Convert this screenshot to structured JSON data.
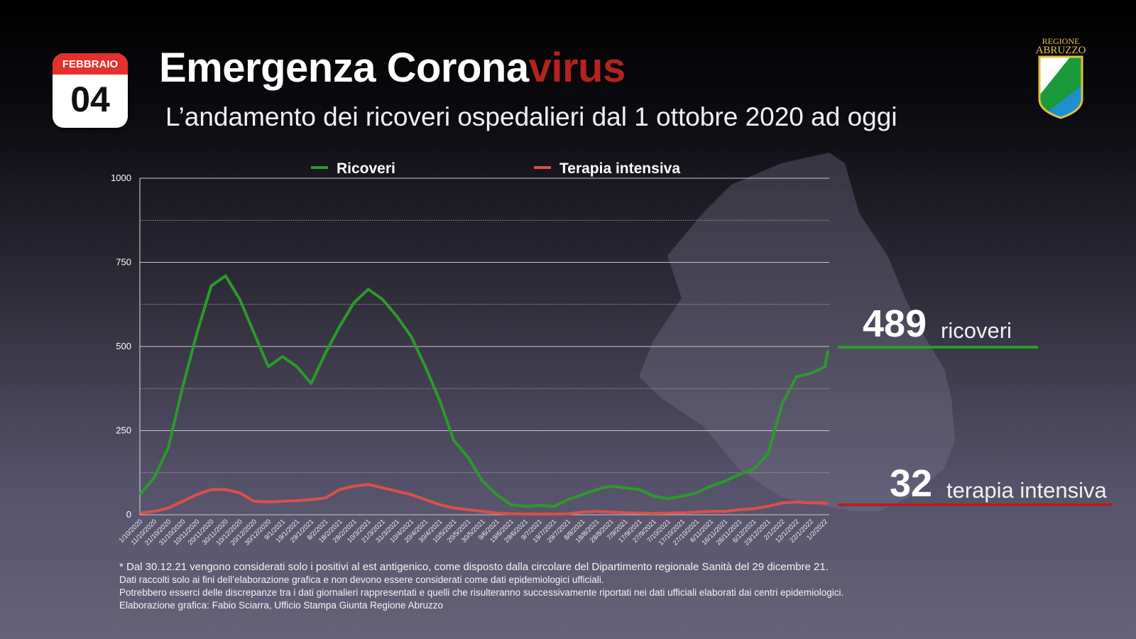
{
  "calendar": {
    "month": "FEBBRAIO",
    "day": "04"
  },
  "header": {
    "title_main": "Emergenza Corona",
    "title_accent": "virus",
    "subtitle": "L’andamento dei ricoveri ospedalieri dal 1 ottobre 2020 ad oggi"
  },
  "logo": {
    "line1": "REGIONE",
    "line2": "ABRUZZO"
  },
  "chart_data": {
    "type": "line",
    "title": "",
    "ylim": [
      0,
      1000
    ],
    "yticks": [
      0,
      250,
      500,
      750,
      1000
    ],
    "grid": true,
    "legend_placement": "top",
    "x": [
      "1/10/2020",
      "11/10/2020",
      "21/10/2020",
      "31/10/2020",
      "10/11/2020",
      "20/11/2020",
      "30/11/2020",
      "10/12/2020",
      "20/12/2020",
      "30/12/2020",
      "9/1/2021",
      "19/1/2021",
      "29/1/2021",
      "8/2/2021",
      "18/2/2021",
      "28/2/2021",
      "10/3/2021",
      "21/3/2021",
      "31/3/2021",
      "10/4/2021",
      "20/4/2021",
      "30/4/2021",
      "10/5/2021",
      "20/5/2021",
      "30/5/2021",
      "9/6/2021",
      "19/6/2021",
      "29/6/2021",
      "9/7/2021",
      "19/7/2021",
      "29/7/2021",
      "8/8/2021",
      "18/8/2021",
      "28/8/2021",
      "7/9/2021",
      "17/9/2021",
      "27/9/2021",
      "7/10/2021",
      "17/10/2021",
      "27/10/2021",
      "6/11/2021",
      "16/11/2021",
      "26/11/2021",
      "6/12/2021",
      "23/12/2021",
      "2/1/2022",
      "12/1/2022",
      "22/1/2022",
      "1/2/2022"
    ],
    "series": [
      {
        "name": "Ricoveri",
        "color": "#2a9a2a",
        "values": [
          60,
          110,
          200,
          380,
          540,
          680,
          710,
          640,
          540,
          440,
          470,
          440,
          390,
          480,
          560,
          630,
          670,
          640,
          590,
          530,
          440,
          340,
          220,
          170,
          100,
          60,
          30,
          25,
          28,
          25,
          45,
          60,
          75,
          85,
          80,
          75,
          55,
          48,
          55,
          65,
          85,
          100,
          120,
          135,
          180,
          330,
          410,
          420,
          440
        ],
        "last_value": 489
      },
      {
        "name": "Terapia intensiva",
        "color": "#d9504a",
        "values": [
          5,
          10,
          20,
          40,
          60,
          75,
          75,
          65,
          40,
          38,
          40,
          42,
          45,
          50,
          75,
          85,
          90,
          80,
          70,
          60,
          45,
          30,
          20,
          15,
          10,
          5,
          3,
          2,
          2,
          2,
          3,
          8,
          10,
          8,
          6,
          5,
          4,
          5,
          6,
          8,
          10,
          10,
          15,
          18,
          25,
          35,
          38,
          35,
          35
        ],
        "last_value": 32
      }
    ]
  },
  "callouts": {
    "ricoveri_value": "489",
    "ricoveri_label": "ricoveri",
    "ti_value": "32",
    "ti_label": "terapia intensiva"
  },
  "notes": [
    "* Dal 30.12.21 vengono considerati solo i positivi al est antigenico, come disposto dalla circolare del Dipartimento regionale Sanità del 29 dicembre 21.",
    "Dati raccolti solo ai fini dell’elaborazione grafica e non devono essere considerati come dati epidemiologici ufficiali.",
    "Potrebbero esserci delle discrepanze tra i dati giornalieri rappresentati e quelli che risulteranno successivamente riportati nei dati ufficiali elaborati dai centri epidemiologici.",
    "Elaborazione grafica: Fabio Sciarra, Ufficio Stampa Giunta Regione Abruzzo"
  ]
}
